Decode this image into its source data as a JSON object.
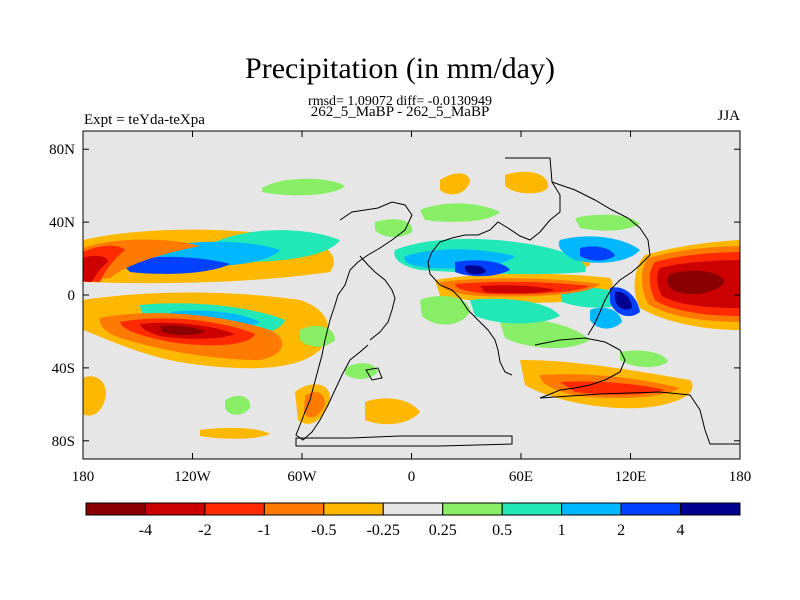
{
  "header": {
    "title": "Precipitation (in mm/day)",
    "stats": "rmsd= 1.09072 diff= -0.0130949",
    "subtitle": "262_5_MaBP - 262_5_MaBP",
    "left_label": "Expt = teYda-teXpa",
    "right_label": "JJA"
  },
  "chart_data": {
    "type": "heatmap",
    "title": "Precipitation (in mm/day)",
    "x_ticks": [
      "180",
      "120W",
      "60W",
      "0",
      "60E",
      "120E",
      "180"
    ],
    "x_tick_values": [
      -180,
      -120,
      -60,
      0,
      60,
      120,
      180
    ],
    "y_ticks": [
      "80N",
      "40N",
      "0",
      "40S",
      "80S"
    ],
    "y_tick_values": [
      80,
      40,
      0,
      -40,
      -80
    ],
    "xlim": [
      -180,
      180
    ],
    "ylim": [
      -90,
      90
    ],
    "colorbar": {
      "labels": [
        "-4",
        "-2",
        "-1",
        "-0.5",
        "-0.25",
        "0.25",
        "0.5",
        "1",
        "2",
        "4"
      ],
      "boundaries": [
        -4,
        -2,
        -1,
        -0.5,
        -0.25,
        0.25,
        0.5,
        1,
        2,
        4
      ],
      "colors": [
        "#8a0000",
        "#cc0000",
        "#ff2a00",
        "#ff7a00",
        "#ffb800",
        "#e6e6e6",
        "#88ee66",
        "#22e8b8",
        "#00b8ff",
        "#0040ff",
        "#000090"
      ]
    },
    "background_color": "#e6e6e6"
  }
}
